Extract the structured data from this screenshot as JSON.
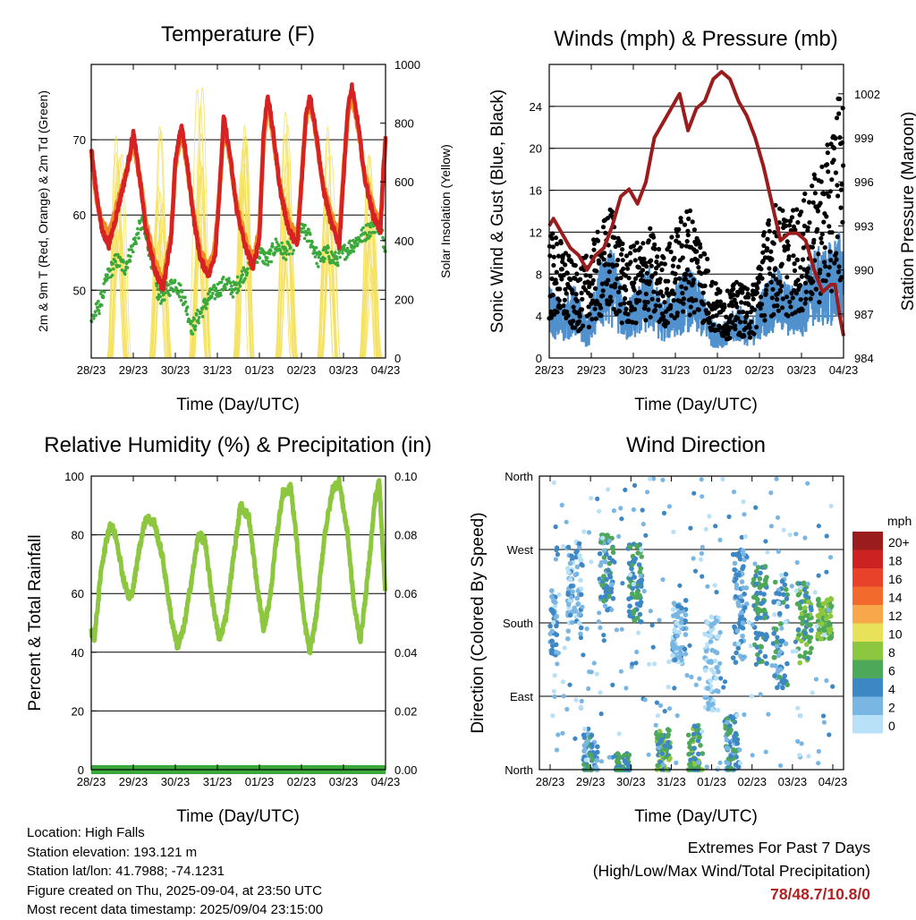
{
  "panels": {
    "temperature": {
      "title": "Temperature (F)",
      "ylabel_left": "2m & 9m T (Red, Orange) & 2m Td (Green)",
      "ylabel_right": "Solar Insolation (Yellow)",
      "xlabel": "Time (Day/UTC)"
    },
    "winds": {
      "title": "Winds (mph) & Pressure (mb)",
      "ylabel_left": "Sonic Wind & Gust (Blue, Black)",
      "ylabel_right": "Station Pressure (Maroon)",
      "xlabel": "Time (Day/UTC)"
    },
    "humidity": {
      "title": "Relative Humidity (%) & Precipitation (in)",
      "ylabel_left": "Percent & Total Rainfall",
      "xlabel": "Time (Day/UTC)"
    },
    "direction": {
      "title": "Wind Direction",
      "ylabel_left": "Direction (Colored By Speed)",
      "xlabel": "Time (Day/UTC)",
      "legend_unit": "mph"
    }
  },
  "info": {
    "location": "Location: High Falls",
    "elevation": "Station elevation: 193.121 m",
    "latlon": "Station lat/lon: 41.7988; -74.1231",
    "created": "Figure created on Thu, 2025-09-04, at 23:50 UTC",
    "recent": "Most recent data timestamp: 2025/09/04 23:15:00"
  },
  "extremes": {
    "title": "Extremes For Past 7 Days",
    "subtitle": "(High/Low/Max Wind/Total Precipitation)",
    "values": "78/48.7/10.8/0"
  },
  "chart_data": [
    {
      "type": "line",
      "id": "temperature",
      "x_ticks": [
        "28/23",
        "29/23",
        "30/23",
        "31/23",
        "01/23",
        "02/23",
        "03/23",
        "04/23"
      ],
      "ylim": [
        41,
        80
      ],
      "y_ticks": [
        50,
        60,
        70
      ],
      "y2lim": [
        0,
        1000
      ],
      "y2_ticks": [
        0,
        200,
        400,
        600,
        800,
        1000
      ],
      "series": [
        {
          "role": "temp_2m",
          "color": "#d62222",
          "x": [
            0,
            0.1,
            0.25,
            0.42,
            0.6,
            0.85,
            1.0,
            1.15,
            1.3,
            1.5,
            1.7,
            1.9,
            2.0,
            2.15,
            2.3,
            2.45,
            2.6,
            2.8,
            2.95,
            3.05,
            3.15,
            3.3,
            3.45,
            3.65,
            3.85,
            4.0,
            4.1,
            4.2,
            4.35,
            4.5,
            4.7,
            4.9,
            5.0,
            5.1,
            5.2,
            5.35,
            5.5,
            5.7,
            5.9,
            6.0,
            6.1,
            6.2,
            6.35,
            6.5,
            6.7,
            6.88,
            6.95,
            7.0
          ],
          "values": [
            69,
            64,
            58,
            56,
            60,
            66,
            71,
            65,
            58,
            53,
            50,
            57,
            67,
            72,
            66,
            59,
            54,
            52,
            55,
            63,
            73,
            68,
            61,
            56,
            53,
            57,
            71,
            76,
            70,
            63,
            58,
            56,
            64,
            73,
            76,
            71,
            64,
            59,
            56,
            65,
            74,
            77,
            72,
            65,
            60,
            58,
            66,
            70
          ]
        },
        {
          "role": "temp_9m",
          "color": "#f28a25",
          "x": [
            0,
            0.1,
            0.25,
            0.42,
            0.6,
            0.85,
            1.0,
            1.15,
            1.3,
            1.5,
            1.7,
            1.9,
            2.0,
            2.15,
            2.3,
            2.45,
            2.6,
            2.8,
            2.95,
            3.05,
            3.15,
            3.3,
            3.45,
            3.65,
            3.85,
            4.0,
            4.1,
            4.2,
            4.35,
            4.5,
            4.7,
            4.9,
            5.0,
            5.1,
            5.2,
            5.35,
            5.5,
            5.7,
            5.9,
            6.0,
            6.1,
            6.2,
            6.35,
            6.5,
            6.7,
            6.88,
            6.95,
            7.0
          ],
          "values": [
            68.5,
            63,
            59,
            57.5,
            61,
            66,
            70,
            65,
            59,
            54,
            51,
            57.5,
            66.5,
            71,
            65.5,
            59.5,
            55,
            53,
            56,
            63,
            72,
            67.5,
            61.5,
            57,
            54,
            58,
            70,
            75,
            69.5,
            63.5,
            59,
            57,
            64.5,
            72.5,
            75,
            70.5,
            64.5,
            60,
            57,
            65.5,
            73,
            76,
            71.5,
            65.5,
            61,
            59,
            66,
            70
          ]
        },
        {
          "role": "dewpoint_2m",
          "color": "#3aa83a",
          "x": [
            0,
            0.2,
            0.4,
            0.6,
            0.8,
            1.0,
            1.2,
            1.4,
            1.6,
            1.8,
            2.0,
            2.2,
            2.4,
            2.6,
            2.8,
            3.0,
            3.2,
            3.4,
            3.6,
            3.8,
            4.0,
            4.2,
            4.4,
            4.6,
            4.8,
            5.0,
            5.2,
            5.4,
            5.6,
            5.8,
            6.0,
            6.2,
            6.4,
            6.6,
            6.8,
            7.0
          ],
          "values": [
            46,
            48,
            52,
            54,
            53,
            56,
            59,
            55,
            49,
            50,
            51,
            49,
            45,
            47,
            49,
            50,
            51,
            50,
            52,
            54,
            55,
            54,
            56,
            55,
            56,
            58,
            57,
            54,
            55,
            54,
            55,
            56,
            57,
            58,
            59,
            56
          ]
        },
        {
          "role": "solar",
          "axis": "right",
          "color": "#f5e05a",
          "peaks_day_offset": [
            0.7,
            1.7,
            2.65,
            3.7,
            4.7,
            5.7,
            6.7
          ],
          "peak_values": [
            760,
            860,
            950,
            830,
            840,
            850,
            700
          ]
        }
      ]
    },
    {
      "type": "scatter",
      "id": "winds",
      "x_ticks": [
        "28/23",
        "29/23",
        "30/23",
        "31/23",
        "01/23",
        "02/23",
        "03/23",
        "04/23"
      ],
      "ylim": [
        0,
        28
      ],
      "y_ticks": [
        0,
        4,
        8,
        12,
        16,
        20,
        24
      ],
      "y2lim": [
        984,
        1004
      ],
      "y2_ticks": [
        984,
        987,
        990,
        993,
        996,
        999,
        1002
      ],
      "series": [
        {
          "role": "wind",
          "color": "#4f90cd",
          "x": [
            0,
            0.3,
            0.6,
            0.9,
            1.2,
            1.5,
            1.8,
            2.1,
            2.4,
            2.7,
            3.0,
            3.3,
            3.6,
            3.9,
            4.2,
            4.5,
            4.8,
            5.1,
            5.4,
            5.7,
            6.0,
            6.3,
            6.6,
            6.9
          ],
          "values": [
            4,
            3,
            4,
            2,
            5,
            6,
            3,
            4,
            5,
            3,
            4,
            5,
            4,
            2,
            2,
            3,
            2,
            4,
            5,
            4,
            4,
            6,
            6,
            7
          ]
        },
        {
          "role": "gust",
          "color": "#000000",
          "x": [
            0,
            0.3,
            0.6,
            0.9,
            1.2,
            1.5,
            1.8,
            2.1,
            2.4,
            2.7,
            3.0,
            3.3,
            3.6,
            3.9,
            4.2,
            4.5,
            4.8,
            5.1,
            5.4,
            5.7,
            6.0,
            6.3,
            6.6,
            6.9
          ],
          "values": [
            10,
            9,
            7,
            8,
            10,
            12,
            8,
            9,
            10,
            8,
            10,
            12,
            10,
            6,
            5,
            6,
            5,
            10,
            12,
            11,
            12,
            14,
            16,
            21
          ]
        },
        {
          "role": "pressure",
          "axis": "right",
          "color": "#9b1c1c",
          "x": [
            0,
            0.1,
            0.3,
            0.5,
            0.7,
            0.9,
            1.1,
            1.3,
            1.5,
            1.7,
            1.9,
            2.1,
            2.3,
            2.5,
            2.7,
            2.9,
            3.1,
            3.3,
            3.5,
            3.7,
            3.9,
            4.1,
            4.3,
            4.5,
            4.7,
            4.9,
            5.1,
            5.3,
            5.5,
            5.7,
            5.9,
            6.1,
            6.3,
            6.5,
            6.7,
            6.8,
            6.9,
            7.0
          ],
          "values": [
            993,
            993.5,
            992.5,
            991.5,
            991,
            990,
            991,
            991.5,
            993,
            995,
            995.5,
            994.5,
            996,
            999,
            1000,
            1001,
            1002,
            999.5,
            1001,
            1001.5,
            1003,
            1003.5,
            1003,
            1001.5,
            1000.5,
            999,
            997,
            994.5,
            992,
            992.5,
            992.5,
            992,
            990,
            988.5,
            989,
            989,
            987,
            985.5
          ]
        }
      ]
    },
    {
      "type": "line",
      "id": "humidity",
      "x_ticks": [
        "28/23",
        "29/23",
        "30/23",
        "31/23",
        "01/23",
        "02/23",
        "03/23",
        "04/23"
      ],
      "ylim": [
        0,
        100
      ],
      "y_ticks": [
        0,
        20,
        40,
        60,
        80,
        100
      ],
      "y2lim": [
        0,
        0.1
      ],
      "y2_ticks": [
        "0.00",
        "0.02",
        "0.04",
        "0.06",
        "0.08",
        "0.10"
      ],
      "series": [
        {
          "role": "rh",
          "color": "#8dc63f",
          "x": [
            0,
            0.08,
            0.25,
            0.45,
            0.6,
            0.75,
            0.9,
            1.0,
            1.15,
            1.3,
            1.5,
            1.7,
            1.9,
            2.05,
            2.2,
            2.4,
            2.55,
            2.7,
            2.9,
            3.05,
            3.2,
            3.4,
            3.55,
            3.75,
            3.95,
            4.1,
            4.25,
            4.4,
            4.55,
            4.75,
            4.9,
            5.05,
            5.2,
            5.35,
            5.55,
            5.75,
            5.9,
            6.1,
            6.25,
            6.4,
            6.55,
            6.75,
            6.85,
            7.0
          ],
          "values": [
            47,
            45,
            70,
            84,
            79,
            66,
            58,
            62,
            76,
            86,
            84,
            72,
            52,
            42,
            48,
            66,
            80,
            78,
            56,
            44,
            52,
            74,
            90,
            86,
            62,
            48,
            58,
            78,
            94,
            96,
            76,
            52,
            40,
            52,
            80,
            96,
            98,
            80,
            56,
            44,
            62,
            92,
            98,
            59
          ]
        },
        {
          "role": "precip",
          "axis": "right",
          "color": "#3aa83a",
          "values": [
            0,
            0,
            0,
            0,
            0,
            0,
            0,
            0
          ]
        }
      ]
    },
    {
      "type": "scatter",
      "id": "direction",
      "x_ticks": [
        "28/23",
        "29/23",
        "30/23",
        "31/23",
        "01/23",
        "02/23",
        "03/23",
        "04/23"
      ],
      "y_ticks": [
        "North",
        "East",
        "South",
        "West",
        "North"
      ],
      "ylim": [
        0,
        360
      ],
      "legend": {
        "labels": [
          "20+",
          "18",
          "16",
          "14",
          "12",
          "10",
          "8",
          "6",
          "4",
          "2",
          "0"
        ],
        "colors": [
          "#9b1c1c",
          "#cc2222",
          "#e8422a",
          "#f26b2c",
          "#f8a74a",
          "#e8e25a",
          "#8dc63f",
          "#4ea85a",
          "#3d87c4",
          "#7ab6e3",
          "#b8e1f7"
        ]
      },
      "clusters": [
        {
          "day": 0.0,
          "dir": 180,
          "spread": 40,
          "speed": 3
        },
        {
          "day": 0.6,
          "dir": 220,
          "spread": 60,
          "speed": 2
        },
        {
          "day": 1.0,
          "dir": 15,
          "spread": 30,
          "speed": 4
        },
        {
          "day": 1.4,
          "dir": 240,
          "spread": 50,
          "speed": 4
        },
        {
          "day": 1.8,
          "dir": 0,
          "spread": 20,
          "speed": 5
        },
        {
          "day": 2.1,
          "dir": 230,
          "spread": 50,
          "speed": 5
        },
        {
          "day": 2.8,
          "dir": 20,
          "spread": 30,
          "speed": 6
        },
        {
          "day": 3.2,
          "dir": 170,
          "spread": 40,
          "speed": 2
        },
        {
          "day": 3.6,
          "dir": 20,
          "spread": 35,
          "speed": 6
        },
        {
          "day": 4.0,
          "dir": 130,
          "spread": 60,
          "speed": 1
        },
        {
          "day": 4.5,
          "dir": 30,
          "spread": 40,
          "speed": 4
        },
        {
          "day": 4.7,
          "dir": 200,
          "spread": 70,
          "speed": 3
        },
        {
          "day": 5.2,
          "dir": 190,
          "spread": 60,
          "speed": 5
        },
        {
          "day": 5.7,
          "dir": 170,
          "spread": 70,
          "speed": 4
        },
        {
          "day": 6.3,
          "dir": 180,
          "spread": 50,
          "speed": 6
        },
        {
          "day": 6.8,
          "dir": 185,
          "spread": 25,
          "speed": 7
        }
      ]
    }
  ]
}
